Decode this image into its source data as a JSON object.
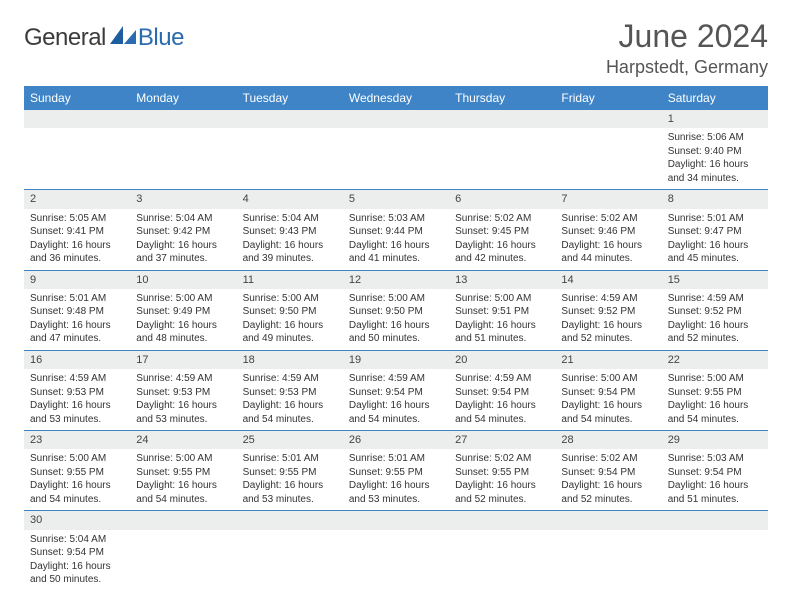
{
  "brand": {
    "part1": "General",
    "part2": "Blue",
    "accent": "#2b6bb0",
    "text_color": "#3b3b3b"
  },
  "title": "June 2024",
  "location": "Harpstedt, Germany",
  "header_bg": "#3e84c6",
  "daynum_bg": "#eceded",
  "border_color": "#3e84c6",
  "weekdays": [
    "Sunday",
    "Monday",
    "Tuesday",
    "Wednesday",
    "Thursday",
    "Friday",
    "Saturday"
  ],
  "weeks": [
    [
      null,
      null,
      null,
      null,
      null,
      null,
      {
        "n": "1",
        "sr": "5:06 AM",
        "ss": "9:40 PM",
        "dl": "16 hours and 34 minutes."
      }
    ],
    [
      {
        "n": "2",
        "sr": "5:05 AM",
        "ss": "9:41 PM",
        "dl": "16 hours and 36 minutes."
      },
      {
        "n": "3",
        "sr": "5:04 AM",
        "ss": "9:42 PM",
        "dl": "16 hours and 37 minutes."
      },
      {
        "n": "4",
        "sr": "5:04 AM",
        "ss": "9:43 PM",
        "dl": "16 hours and 39 minutes."
      },
      {
        "n": "5",
        "sr": "5:03 AM",
        "ss": "9:44 PM",
        "dl": "16 hours and 41 minutes."
      },
      {
        "n": "6",
        "sr": "5:02 AM",
        "ss": "9:45 PM",
        "dl": "16 hours and 42 minutes."
      },
      {
        "n": "7",
        "sr": "5:02 AM",
        "ss": "9:46 PM",
        "dl": "16 hours and 44 minutes."
      },
      {
        "n": "8",
        "sr": "5:01 AM",
        "ss": "9:47 PM",
        "dl": "16 hours and 45 minutes."
      }
    ],
    [
      {
        "n": "9",
        "sr": "5:01 AM",
        "ss": "9:48 PM",
        "dl": "16 hours and 47 minutes."
      },
      {
        "n": "10",
        "sr": "5:00 AM",
        "ss": "9:49 PM",
        "dl": "16 hours and 48 minutes."
      },
      {
        "n": "11",
        "sr": "5:00 AM",
        "ss": "9:50 PM",
        "dl": "16 hours and 49 minutes."
      },
      {
        "n": "12",
        "sr": "5:00 AM",
        "ss": "9:50 PM",
        "dl": "16 hours and 50 minutes."
      },
      {
        "n": "13",
        "sr": "5:00 AM",
        "ss": "9:51 PM",
        "dl": "16 hours and 51 minutes."
      },
      {
        "n": "14",
        "sr": "4:59 AM",
        "ss": "9:52 PM",
        "dl": "16 hours and 52 minutes."
      },
      {
        "n": "15",
        "sr": "4:59 AM",
        "ss": "9:52 PM",
        "dl": "16 hours and 52 minutes."
      }
    ],
    [
      {
        "n": "16",
        "sr": "4:59 AM",
        "ss": "9:53 PM",
        "dl": "16 hours and 53 minutes."
      },
      {
        "n": "17",
        "sr": "4:59 AM",
        "ss": "9:53 PM",
        "dl": "16 hours and 53 minutes."
      },
      {
        "n": "18",
        "sr": "4:59 AM",
        "ss": "9:53 PM",
        "dl": "16 hours and 54 minutes."
      },
      {
        "n": "19",
        "sr": "4:59 AM",
        "ss": "9:54 PM",
        "dl": "16 hours and 54 minutes."
      },
      {
        "n": "20",
        "sr": "4:59 AM",
        "ss": "9:54 PM",
        "dl": "16 hours and 54 minutes."
      },
      {
        "n": "21",
        "sr": "5:00 AM",
        "ss": "9:54 PM",
        "dl": "16 hours and 54 minutes."
      },
      {
        "n": "22",
        "sr": "5:00 AM",
        "ss": "9:55 PM",
        "dl": "16 hours and 54 minutes."
      }
    ],
    [
      {
        "n": "23",
        "sr": "5:00 AM",
        "ss": "9:55 PM",
        "dl": "16 hours and 54 minutes."
      },
      {
        "n": "24",
        "sr": "5:00 AM",
        "ss": "9:55 PM",
        "dl": "16 hours and 54 minutes."
      },
      {
        "n": "25",
        "sr": "5:01 AM",
        "ss": "9:55 PM",
        "dl": "16 hours and 53 minutes."
      },
      {
        "n": "26",
        "sr": "5:01 AM",
        "ss": "9:55 PM",
        "dl": "16 hours and 53 minutes."
      },
      {
        "n": "27",
        "sr": "5:02 AM",
        "ss": "9:55 PM",
        "dl": "16 hours and 52 minutes."
      },
      {
        "n": "28",
        "sr": "5:02 AM",
        "ss": "9:54 PM",
        "dl": "16 hours and 52 minutes."
      },
      {
        "n": "29",
        "sr": "5:03 AM",
        "ss": "9:54 PM",
        "dl": "16 hours and 51 minutes."
      }
    ],
    [
      {
        "n": "30",
        "sr": "5:04 AM",
        "ss": "9:54 PM",
        "dl": "16 hours and 50 minutes."
      },
      null,
      null,
      null,
      null,
      null,
      null
    ]
  ],
  "labels": {
    "sunrise": "Sunrise:",
    "sunset": "Sunset:",
    "daylight": "Daylight:"
  }
}
